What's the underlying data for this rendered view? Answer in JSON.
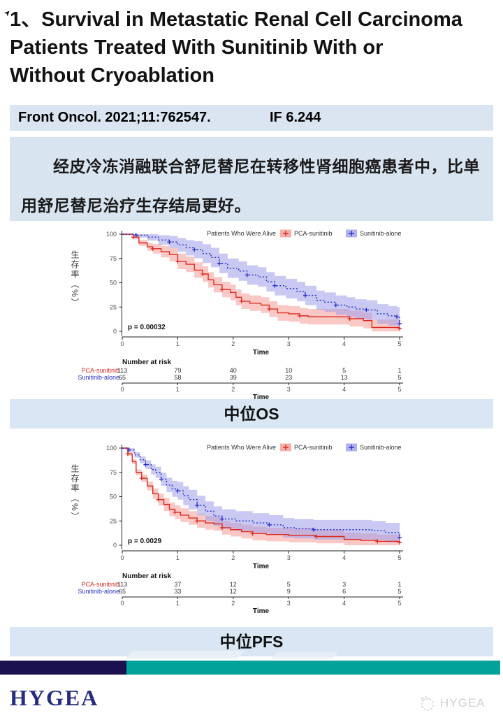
{
  "title": {
    "lines": [
      "1、Survival in Metastatic Renal Cell Carcinoma",
      "Patients Treated With Sunitinib With or",
      "Without Cryoablation"
    ]
  },
  "arrow_glyph": "➤",
  "citation": {
    "journal": "Front Oncol. 2021;11:762547.",
    "impact_factor": "IF 6.244"
  },
  "summary": {
    "text": "经皮冷冻消融联合舒尼替尼在转移性肾细胞癌患者中，比单用舒尼替尼治疗生存结局更好。"
  },
  "captions": {
    "os": "中位OS",
    "pfs": "中位PFS"
  },
  "footer": {
    "brand_label": "HYGEA",
    "watermark_label": "HYGEA",
    "bar_navy_color": "#1b1050",
    "bar_teal_color": "#02a29a"
  },
  "colors": {
    "red_line": "#db2a20",
    "red_band": "#f59b95",
    "blue_line": "#2730c8",
    "blue_band": "#9c9dea",
    "panel_blue": "#d8e4f0"
  },
  "chart_data": [
    {
      "id": "os",
      "type": "line",
      "subtype": "kaplan-meier",
      "legend_title": "Patients Who Were Alive",
      "p_label": "p = 0.00032",
      "xlabel": "Time",
      "ylabel": "生存率（%）",
      "xlim": [
        0,
        5
      ],
      "ylim": [
        0,
        100
      ],
      "xticks": [
        0,
        1,
        2,
        3,
        4,
        5
      ],
      "yticks": [
        0,
        25,
        50,
        75,
        100
      ],
      "risk_header": "Number at risk",
      "risk_xlabel": "Time",
      "series": [
        {
          "name": "PCA-sunitinib",
          "line_color": "#db2a20",
          "band_color": "#f59b95",
          "style": "solid",
          "band": {
            "base": 1,
            "slope": 7,
            "max": 8
          },
          "points": [
            [
              0,
              100
            ],
            [
              0.2,
              97
            ],
            [
              0.3,
              91
            ],
            [
              0.45,
              87
            ],
            [
              0.55,
              85
            ],
            [
              0.7,
              82
            ],
            [
              0.85,
              79
            ],
            [
              1.0,
              72
            ],
            [
              1.15,
              69
            ],
            [
              1.3,
              63
            ],
            [
              1.45,
              59
            ],
            [
              1.55,
              53
            ],
            [
              1.65,
              48
            ],
            [
              1.8,
              43
            ],
            [
              1.95,
              40
            ],
            [
              2.05,
              35
            ],
            [
              2.15,
              31
            ],
            [
              2.3,
              29
            ],
            [
              2.5,
              27
            ],
            [
              2.65,
              23
            ],
            [
              2.8,
              19
            ],
            [
              3.0,
              18
            ],
            [
              3.2,
              16
            ],
            [
              3.35,
              15
            ],
            [
              3.9,
              15
            ],
            [
              4.1,
              13
            ],
            [
              4.35,
              11
            ],
            [
              4.5,
              4
            ],
            [
              5,
              3
            ]
          ],
          "risk": [
            113,
            79,
            40,
            10,
            5,
            1
          ]
        },
        {
          "name": "Sunitinib-alone",
          "line_color": "#2730c8",
          "band_color": "#9c9dea",
          "style": "dotted",
          "band": {
            "base": 1,
            "slope": 6,
            "max": 10
          },
          "points": [
            [
              0,
              100
            ],
            [
              0.25,
              99
            ],
            [
              0.45,
              97
            ],
            [
              0.65,
              94
            ],
            [
              0.85,
              92
            ],
            [
              1.0,
              89
            ],
            [
              1.15,
              86
            ],
            [
              1.3,
              84
            ],
            [
              1.45,
              80
            ],
            [
              1.6,
              76
            ],
            [
              1.75,
              70
            ],
            [
              1.9,
              65
            ],
            [
              2.1,
              62
            ],
            [
              2.25,
              58
            ],
            [
              2.45,
              56
            ],
            [
              2.6,
              51
            ],
            [
              2.75,
              47
            ],
            [
              2.95,
              44
            ],
            [
              3.15,
              41
            ],
            [
              3.3,
              37
            ],
            [
              3.5,
              32
            ],
            [
              3.65,
              30
            ],
            [
              3.85,
              27
            ],
            [
              4.05,
              25
            ],
            [
              4.2,
              23
            ],
            [
              4.4,
              22
            ],
            [
              4.6,
              18
            ],
            [
              4.8,
              16
            ],
            [
              4.95,
              15
            ],
            [
              5,
              8
            ]
          ],
          "risk": [
            65,
            58,
            39,
            23,
            13,
            5
          ]
        }
      ]
    },
    {
      "id": "pfs",
      "type": "line",
      "subtype": "kaplan-meier",
      "legend_title": "Patients Who Were Alive",
      "p_label": "p = 0.0029",
      "xlabel": "Time",
      "ylabel": "生存率（%）",
      "xlim": [
        0,
        5
      ],
      "ylim": [
        0,
        100
      ],
      "xticks": [
        0,
        1,
        2,
        3,
        4,
        5
      ],
      "yticks": [
        0,
        25,
        50,
        75,
        100
      ],
      "risk_header": "Number at risk",
      "risk_xlabel": "Time",
      "series": [
        {
          "name": "PCA-sunitinib",
          "line_color": "#db2a20",
          "band_color": "#f59b95",
          "style": "solid",
          "band": {
            "base": 1,
            "slope": 8,
            "max": 7
          },
          "points": [
            [
              0,
              100
            ],
            [
              0.1,
              94
            ],
            [
              0.18,
              86
            ],
            [
              0.25,
              75
            ],
            [
              0.35,
              69
            ],
            [
              0.45,
              61
            ],
            [
              0.55,
              53
            ],
            [
              0.65,
              47
            ],
            [
              0.75,
              42
            ],
            [
              0.85,
              37
            ],
            [
              0.95,
              34
            ],
            [
              1.05,
              31
            ],
            [
              1.2,
              28
            ],
            [
              1.35,
              25
            ],
            [
              1.5,
              23
            ],
            [
              1.65,
              22
            ],
            [
              1.8,
              18
            ],
            [
              1.95,
              16
            ],
            [
              2.15,
              14
            ],
            [
              2.35,
              12
            ],
            [
              2.6,
              11
            ],
            [
              3.0,
              10
            ],
            [
              3.5,
              9
            ],
            [
              4.0,
              6
            ],
            [
              4.3,
              5
            ],
            [
              4.6,
              4
            ],
            [
              5,
              3
            ]
          ],
          "risk": [
            113,
            37,
            12,
            5,
            3,
            1
          ]
        },
        {
          "name": "Sunitinib-alone",
          "line_color": "#2730c8",
          "band_color": "#9c9dea",
          "style": "dotted",
          "band": {
            "base": 1,
            "slope": 8,
            "max": 10
          },
          "points": [
            [
              0,
              100
            ],
            [
              0.12,
              98
            ],
            [
              0.22,
              93
            ],
            [
              0.32,
              88
            ],
            [
              0.42,
              83
            ],
            [
              0.52,
              78
            ],
            [
              0.6,
              75
            ],
            [
              0.7,
              68
            ],
            [
              0.8,
              62
            ],
            [
              0.9,
              58
            ],
            [
              1.0,
              56
            ],
            [
              1.1,
              51
            ],
            [
              1.2,
              47
            ],
            [
              1.35,
              41
            ],
            [
              1.5,
              35
            ],
            [
              1.65,
              30
            ],
            [
              1.8,
              27
            ],
            [
              2.05,
              25
            ],
            [
              2.35,
              23
            ],
            [
              2.65,
              21
            ],
            [
              2.9,
              18
            ],
            [
              3.1,
              17
            ],
            [
              3.45,
              16
            ],
            [
              4.5,
              15
            ],
            [
              4.75,
              13
            ],
            [
              5,
              8
            ]
          ],
          "risk": [
            65,
            33,
            12,
            9,
            6,
            5
          ]
        }
      ]
    }
  ]
}
